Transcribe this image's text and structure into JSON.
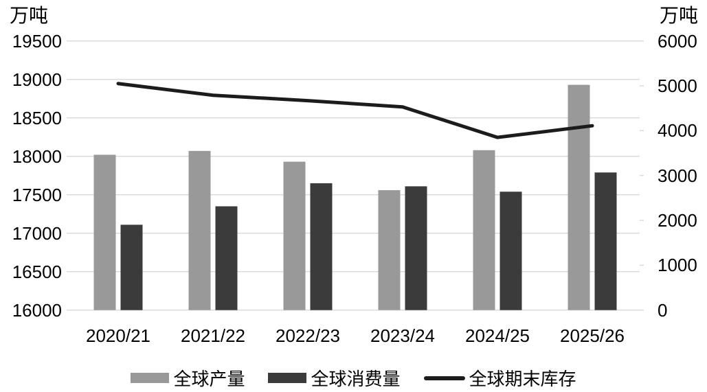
{
  "chart_data": {
    "type": "combo",
    "subtype": "grouped-bars-with-line",
    "categories": [
      "2020/21",
      "2021/22",
      "2022/23",
      "2023/24",
      "2024/25",
      "2025/26"
    ],
    "bar_series": [
      {
        "name": "全球产量",
        "axis": "left",
        "color": "#999999",
        "values": [
          18020,
          18070,
          17930,
          17560,
          18080,
          18930
        ]
      },
      {
        "name": "全球消费量",
        "axis": "left",
        "color": "#3b3b3b",
        "values": [
          17110,
          17350,
          17650,
          17610,
          17540,
          17790
        ]
      }
    ],
    "line_series": [
      {
        "name": "全球期末库存",
        "axis": "right",
        "color": "#1c1c1c",
        "stroke_width": 5,
        "values": [
          5050,
          4790,
          4670,
          4530,
          3850,
          4110
        ]
      }
    ],
    "left_axis": {
      "unit": "万吨",
      "min": 16000,
      "max": 19500,
      "step": 500,
      "ticks": [
        19500,
        19000,
        18500,
        18000,
        17500,
        17000,
        16500,
        16000
      ]
    },
    "right_axis": {
      "unit": "万吨",
      "min": 0,
      "max": 6000,
      "step": 1000,
      "ticks": [
        6000,
        5000,
        4000,
        3000,
        2000,
        1000,
        0
      ]
    },
    "grid": true,
    "gridline_color": "#d9d9d9",
    "legend_position": "bottom"
  }
}
